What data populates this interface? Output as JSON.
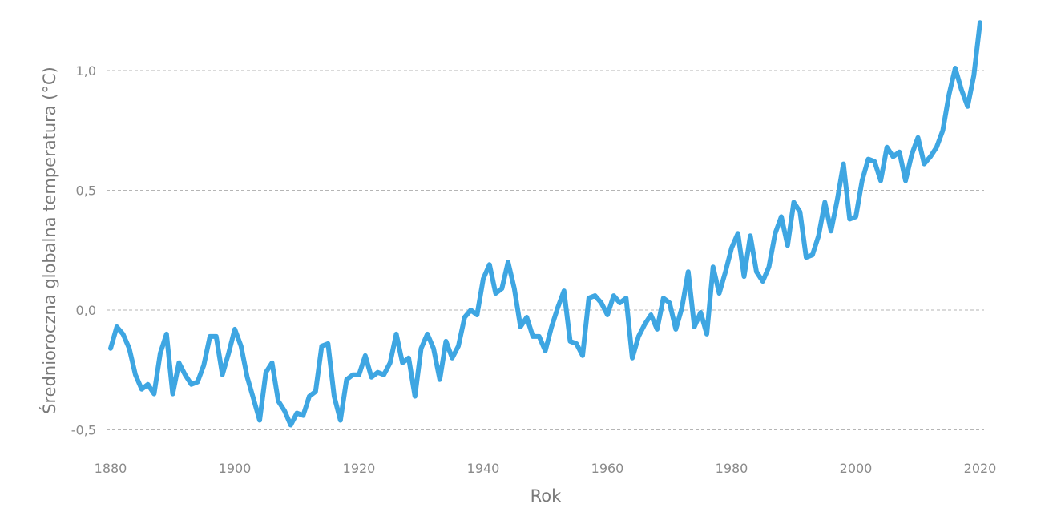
{
  "chart_data": {
    "type": "line",
    "xlabel": "Rok",
    "ylabel": "Średnioroczna globalna temperatura (°C)",
    "xlim": [
      1880,
      2020
    ],
    "ylim": [
      -0.5,
      1.2
    ],
    "grid": true,
    "x_ticks": [
      1880,
      1900,
      1920,
      1940,
      1960,
      1980,
      2000,
      2020
    ],
    "x_tick_labels": [
      "1880",
      "1900",
      "1920",
      "1940",
      "1960",
      "1980",
      "2000",
      "2020"
    ],
    "y_ticks": [
      -0.5,
      0.0,
      0.5,
      1.0
    ],
    "y_tick_labels": [
      "-0,5",
      "0,0",
      "0,5",
      "1,0"
    ],
    "colors": {
      "line": "#3ea6e2",
      "grid": "#b5b5b5",
      "text": "#8a8a8a"
    },
    "series": [
      {
        "x": [
          1880,
          1881,
          1882,
          1883,
          1884,
          1885,
          1886,
          1887,
          1888,
          1889,
          1890,
          1891,
          1892,
          1893,
          1894,
          1895,
          1896,
          1897,
          1898,
          1899,
          1900,
          1901,
          1902,
          1903,
          1904,
          1905,
          1906,
          1907,
          1908,
          1909,
          1910,
          1911,
          1912,
          1913,
          1914,
          1915,
          1916,
          1917,
          1918,
          1919,
          1920,
          1921,
          1922,
          1923,
          1924,
          1925,
          1926,
          1927,
          1928,
          1929,
          1930,
          1931,
          1932,
          1933,
          1934,
          1935,
          1936,
          1937,
          1938,
          1939,
          1940,
          1941,
          1942,
          1943,
          1944,
          1945,
          1946,
          1947,
          1948,
          1949,
          1950,
          1951,
          1952,
          1953,
          1954,
          1955,
          1956,
          1957,
          1958,
          1959,
          1960,
          1961,
          1962,
          1963,
          1964,
          1965,
          1966,
          1967,
          1968,
          1969,
          1970,
          1971,
          1972,
          1973,
          1974,
          1975,
          1976,
          1977,
          1978,
          1979,
          1980,
          1981,
          1982,
          1983,
          1984,
          1985,
          1986,
          1987,
          1988,
          1989,
          1990,
          1991,
          1992,
          1993,
          1994,
          1995,
          1996,
          1997,
          1998,
          1999,
          2000,
          2001,
          2002,
          2003,
          2004,
          2005,
          2006,
          2007,
          2008,
          2009,
          2010,
          2011,
          2012,
          2013,
          2014,
          2015,
          2016,
          2017,
          2018,
          2019,
          2020
        ],
        "values": [
          -0.16,
          -0.07,
          -0.1,
          -0.16,
          -0.27,
          -0.33,
          -0.31,
          -0.35,
          -0.18,
          -0.1,
          -0.35,
          -0.22,
          -0.27,
          -0.31,
          -0.3,
          -0.23,
          -0.11,
          -0.11,
          -0.27,
          -0.18,
          -0.08,
          -0.15,
          -0.28,
          -0.37,
          -0.46,
          -0.26,
          -0.22,
          -0.38,
          -0.42,
          -0.48,
          -0.43,
          -0.44,
          -0.36,
          -0.34,
          -0.15,
          -0.14,
          -0.36,
          -0.46,
          -0.29,
          -0.27,
          -0.27,
          -0.19,
          -0.28,
          -0.26,
          -0.27,
          -0.22,
          -0.1,
          -0.22,
          -0.2,
          -0.36,
          -0.16,
          -0.1,
          -0.16,
          -0.29,
          -0.13,
          -0.2,
          -0.15,
          -0.03,
          0.0,
          -0.02,
          0.13,
          0.19,
          0.07,
          0.09,
          0.2,
          0.09,
          -0.07,
          -0.03,
          -0.11,
          -0.11,
          -0.17,
          -0.07,
          0.01,
          0.08,
          -0.13,
          -0.14,
          -0.19,
          0.05,
          0.06,
          0.03,
          -0.02,
          0.06,
          0.03,
          0.05,
          -0.2,
          -0.11,
          -0.06,
          -0.02,
          -0.08,
          0.05,
          0.03,
          -0.08,
          0.01,
          0.16,
          -0.07,
          -0.01,
          -0.1,
          0.18,
          0.07,
          0.16,
          0.26,
          0.32,
          0.14,
          0.31,
          0.16,
          0.12,
          0.18,
          0.32,
          0.39,
          0.27,
          0.45,
          0.41,
          0.22,
          0.23,
          0.31,
          0.45,
          0.33,
          0.46,
          0.61,
          0.38,
          0.39,
          0.54,
          0.63,
          0.62,
          0.54,
          0.68,
          0.64,
          0.66,
          0.54,
          0.65,
          0.72,
          0.61,
          0.64,
          0.68,
          0.75,
          0.9,
          1.01,
          0.92,
          0.85,
          0.98,
          1.2
        ]
      }
    ]
  }
}
